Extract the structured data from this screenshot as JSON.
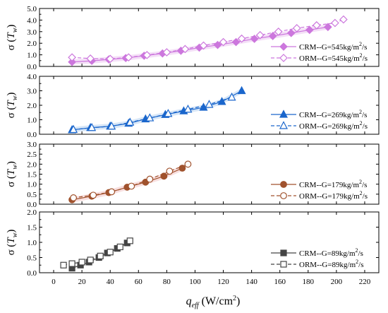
{
  "chart_data": {
    "type": "scatter",
    "xlabel_main": "q",
    "xlabel_sub": "eff",
    "xlabel_unit": " (W/cm",
    "xlabel_exp": "2",
    "xlabel_close": ")",
    "x_ticks": [
      "0",
      "20",
      "40",
      "60",
      "80",
      "100",
      "120",
      "140",
      "160",
      "180",
      "200",
      "220"
    ],
    "xlim": [
      -10,
      230
    ],
    "ylabel_sigma": "σ (",
    "ylabel_T": "T",
    "ylabel_sub": "w",
    "ylabel_close": ")",
    "panels": [
      {
        "ylim": [
          0,
          5
        ],
        "y_ticks": [
          "0.0",
          "1.0",
          "2.0",
          "3.0",
          "4.0",
          "5.0"
        ],
        "tick_step": 1,
        "color": "#cc77dd",
        "band_color": "#e7b8ee",
        "marker": "diamond",
        "series": [
          {
            "name": "CRM--G=545kg/m²/s",
            "label_pre": "CRM--G=545kg/m",
            "label_post": "/s",
            "filled": true,
            "x": [
              13,
              27,
              39,
              51,
              64,
              77,
              90,
              103,
              116,
              129,
              142,
              155,
              168,
              181,
              194
            ],
            "y": [
              0.38,
              0.48,
              0.6,
              0.72,
              0.92,
              1.12,
              1.35,
              1.62,
              1.85,
              2.1,
              2.38,
              2.62,
              2.88,
              3.15,
              3.4
            ]
          },
          {
            "name": "ORM--G=545kg/m²/s",
            "label_pre": "ORM--G=545kg/m",
            "label_post": "/s",
            "filled": false,
            "x": [
              13,
              26,
              40,
              53,
              66,
              80,
              93,
              106,
              120,
              133,
              146,
              159,
              172,
              186,
              199,
              205
            ],
            "y": [
              0.78,
              0.68,
              0.65,
              0.78,
              0.98,
              1.22,
              1.5,
              1.8,
              2.1,
              2.4,
              2.7,
              3.0,
              3.3,
              3.55,
              3.75,
              4.05
            ]
          }
        ]
      },
      {
        "ylim": [
          0,
          4
        ],
        "y_ticks": [
          "0.0",
          "1.0",
          "2.0",
          "3.0",
          "4.0"
        ],
        "tick_step": 1,
        "color": "#1a66cc",
        "band_color": "#a7c8ee",
        "marker": "triangle",
        "series": [
          {
            "name": "CRM--G=269kg/m²/s",
            "label_pre": "CRM--G=269kg/m",
            "label_post": "/s",
            "filled": true,
            "x": [
              13,
              26,
              40,
              53,
              65,
              79,
              92,
              106,
              119,
              133
            ],
            "y": [
              0.3,
              0.45,
              0.55,
              0.75,
              1.05,
              1.35,
              1.6,
              1.85,
              2.25,
              3.0
            ]
          },
          {
            "name": "ORM--G=269kg/m²/s",
            "label_pre": "ORM--G=269kg/m",
            "label_post": "/s",
            "filled": false,
            "x": [
              14,
              27,
              41,
              54,
              68,
              81,
              95,
              110,
              126
            ],
            "y": [
              0.32,
              0.45,
              0.55,
              0.82,
              1.12,
              1.42,
              1.72,
              2.05,
              2.55
            ]
          }
        ]
      },
      {
        "ylim": [
          0,
          3
        ],
        "y_ticks": [
          "0.0",
          "0.5",
          "1.0",
          "1.5",
          "2.0",
          "2.5",
          "3.0"
        ],
        "tick_step": 0.5,
        "color": "#a0522d",
        "band_color": "#f0b7b7",
        "marker": "circle",
        "series": [
          {
            "name": "CRM--G=179kg/m²/s",
            "label_pre": "CRM--G=179kg/m",
            "label_post": "/s",
            "filled": true,
            "x": [
              13,
              27,
              39,
              52,
              65,
              78,
              91
            ],
            "y": [
              0.22,
              0.4,
              0.58,
              0.85,
              1.1,
              1.4,
              1.8
            ]
          },
          {
            "name": "ORM--G=179kg/m²/s",
            "label_pre": "ORM--G=179kg/m",
            "label_post": "/s",
            "filled": false,
            "x": [
              14,
              28,
              41,
              55,
              68,
              82,
              95
            ],
            "y": [
              0.32,
              0.45,
              0.62,
              0.9,
              1.25,
              1.65,
              2.0
            ]
          }
        ]
      },
      {
        "ylim": [
          0,
          2
        ],
        "y_ticks": [
          "0.0",
          "0.5",
          "1.0",
          "1.5",
          "2.0"
        ],
        "tick_step": 0.5,
        "color": "#444444",
        "band_color": null,
        "marker": "square",
        "series": [
          {
            "name": "CRM--G=89kg/m²/s",
            "label_pre": "CRM--G=89kg/m",
            "label_post": "/s",
            "filled": true,
            "x": [
              13,
              19,
              25,
              32,
              38,
              45,
              52
            ],
            "y": [
              0.15,
              0.25,
              0.35,
              0.5,
              0.65,
              0.8,
              0.98
            ]
          },
          {
            "name": "ORM--G=89kg/m²/s",
            "label_pre": "ORM--G=89kg/m",
            "label_post": "/s",
            "filled": false,
            "x": [
              7,
              13,
              20,
              26,
              33,
              40,
              47,
              54
            ],
            "y": [
              0.25,
              0.3,
              0.35,
              0.42,
              0.55,
              0.68,
              0.85,
              1.05
            ]
          }
        ]
      }
    ]
  }
}
